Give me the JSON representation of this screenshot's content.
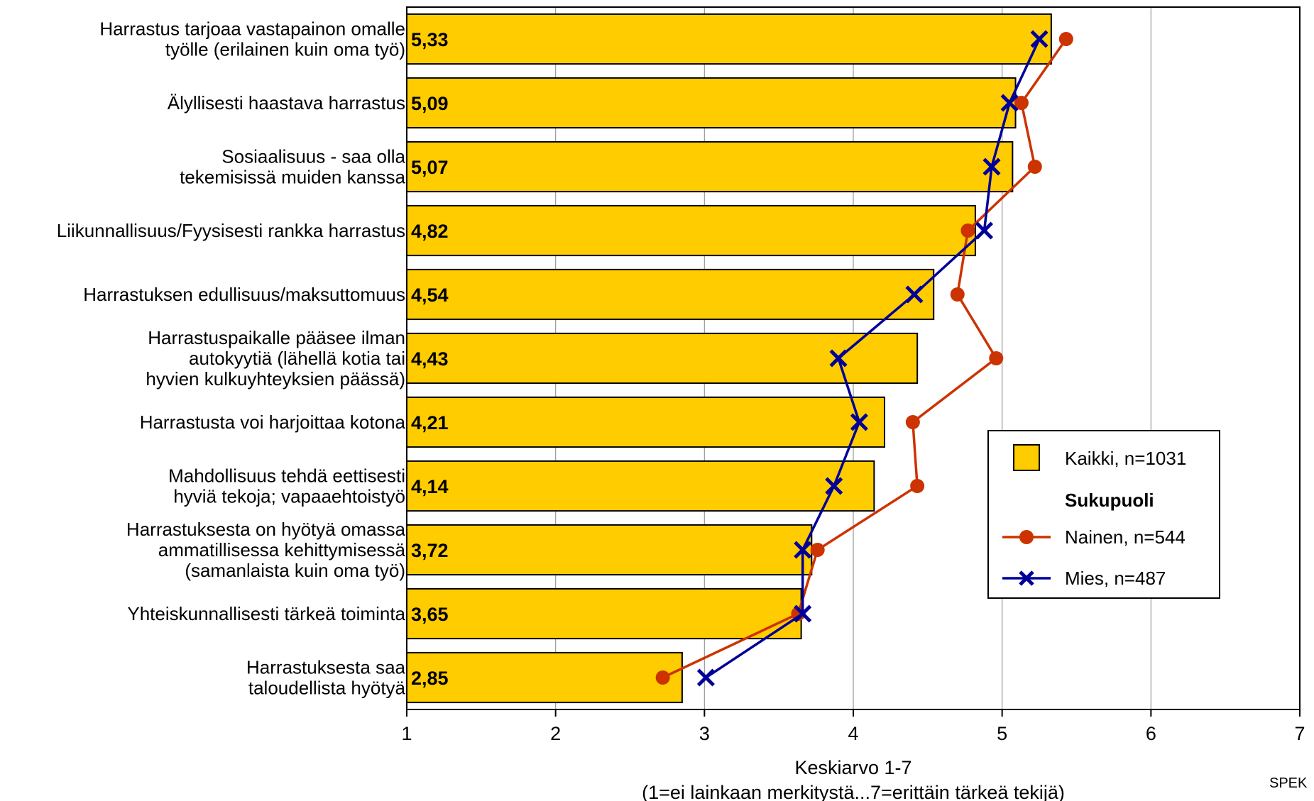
{
  "chart_data": {
    "type": "bar",
    "orientation": "horizontal",
    "categories": [
      [
        "Harrastus tarjoaa vastapainon omalle",
        "työlle (erilainen kuin oma työ)"
      ],
      [
        "Älyllisesti haastava harrastus"
      ],
      [
        "Sosiaalisuus - saa olla",
        "tekemisissä muiden kanssa"
      ],
      [
        "Liikunnallisuus/Fyysisesti rankka harrastus"
      ],
      [
        "Harrastuksen edullisuus/maksuttomuus"
      ],
      [
        "Harrastuspaikalle pääsee ilman",
        "autokyytiä (lähellä kotia tai",
        "hyvien kulkuyhteyksien päässä)"
      ],
      [
        "Harrastusta voi harjoittaa kotona"
      ],
      [
        "Mahdollisuus tehdä eettisesti",
        "hyviä tekoja; vapaaehtoistyö"
      ],
      [
        "Harrastuksesta on hyötyä omassa",
        "ammatillisessa kehittymisessä",
        "(samanlaista kuin oma työ)"
      ],
      [
        "Yhteiskunnallisesti tärkeä toiminta"
      ],
      [
        "Harrastuksesta saa",
        "taloudellista hyötyä"
      ]
    ],
    "series": [
      {
        "name": "Kaikki, n=1031",
        "type": "bar",
        "color": "#FFCC00",
        "values": [
          5.33,
          5.09,
          5.07,
          4.82,
          4.54,
          4.43,
          4.21,
          4.14,
          3.72,
          3.65,
          2.85
        ],
        "labels": [
          "5,33",
          "5,09",
          "5,07",
          "4,82",
          "4,54",
          "4,43",
          "4,21",
          "4,14",
          "3,72",
          "3,65",
          "2,85"
        ]
      },
      {
        "name": "Nainen, n=544",
        "type": "line",
        "marker": "circle",
        "color": "#CC3300",
        "values": [
          5.43,
          5.13,
          5.22,
          4.77,
          4.7,
          4.96,
          4.4,
          4.43,
          3.76,
          3.63,
          2.72
        ]
      },
      {
        "name": "Mies, n=487",
        "type": "line",
        "marker": "x",
        "color": "#000099",
        "values": [
          5.25,
          5.05,
          4.93,
          4.88,
          4.41,
          3.9,
          4.04,
          3.87,
          3.66,
          3.66,
          3.01
        ]
      }
    ],
    "legend_group_title": "Sukupuoli",
    "legend_position": "right",
    "xlim": [
      1,
      7
    ],
    "xticks": [
      "1",
      "2",
      "3",
      "4",
      "5",
      "6",
      "7"
    ],
    "xlabel": [
      "Keskiarvo 1-7",
      "(1=ei lainkaan merkitystä...7=erittäin tärkeä tekijä)"
    ],
    "grid": "vertical",
    "source": "SPEK"
  }
}
